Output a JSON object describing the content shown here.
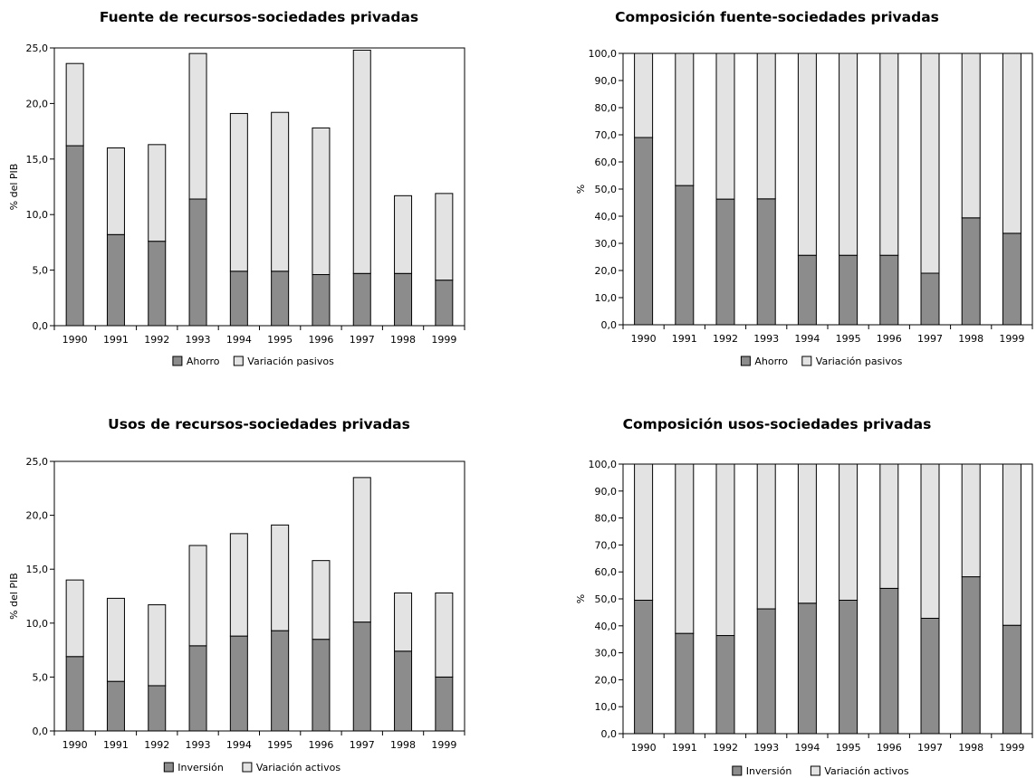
{
  "colors": {
    "dark": "#8c8c8c",
    "light": "#e3e3e3",
    "stroke": "#000000"
  },
  "chart_data": [
    {
      "type": "bar",
      "stacked": true,
      "title": "Fuente de recursos-sociedades privadas",
      "ylabel": "% del PIB",
      "ylim": [
        0,
        25
      ],
      "yticks": [
        "0,0",
        "5,0",
        "10,0",
        "15,0",
        "20,0",
        "25,0"
      ],
      "categories": [
        "1990",
        "1991",
        "1992",
        "1993",
        "1994",
        "1995",
        "1996",
        "1997",
        "1998",
        "1999"
      ],
      "series": [
        {
          "name": "Ahorro",
          "values": [
            16.2,
            8.2,
            7.6,
            11.4,
            4.9,
            4.9,
            4.6,
            4.7,
            4.7,
            4.1
          ]
        },
        {
          "name": "Variación pasivos",
          "values": [
            7.4,
            7.8,
            8.7,
            13.1,
            14.2,
            14.3,
            13.2,
            20.1,
            7.0,
            7.8
          ]
        }
      ],
      "legend": "bottom"
    },
    {
      "type": "bar",
      "stacked": true,
      "title": "Composición fuente-sociedades privadas",
      "ylabel": "%",
      "ylim": [
        0,
        100
      ],
      "yticks": [
        "0,0",
        "10,0",
        "20,0",
        "30,0",
        "40,0",
        "50,0",
        "60,0",
        "70,0",
        "80,0",
        "90,0",
        "100,0"
      ],
      "categories": [
        "1990",
        "1991",
        "1992",
        "1993",
        "1994",
        "1995",
        "1996",
        "1997",
        "1998",
        "1999"
      ],
      "series": [
        {
          "name": "Ahorro",
          "values": [
            69.0,
            51.3,
            46.3,
            46.4,
            25.6,
            25.6,
            25.6,
            19.0,
            39.4,
            33.7
          ]
        },
        {
          "name": "Variación pasivos",
          "values": [
            31.0,
            48.7,
            53.7,
            53.6,
            74.4,
            74.4,
            74.4,
            81.0,
            60.6,
            66.3
          ]
        }
      ],
      "legend": "bottom"
    },
    {
      "type": "bar",
      "stacked": true,
      "title": "Usos de recursos-sociedades privadas",
      "ylabel": "% del PIB",
      "ylim": [
        0,
        25
      ],
      "yticks": [
        "0,0",
        "5,0",
        "10,0",
        "15,0",
        "20,0",
        "25,0"
      ],
      "categories": [
        "1990",
        "1991",
        "1992",
        "1993",
        "1994",
        "1995",
        "1996",
        "1997",
        "1998",
        "1999"
      ],
      "series": [
        {
          "name": "Inversión",
          "values": [
            6.9,
            4.6,
            4.2,
            7.9,
            8.8,
            9.3,
            8.5,
            10.1,
            7.4,
            5.0
          ]
        },
        {
          "name": "Variación activos",
          "values": [
            7.1,
            7.7,
            7.5,
            9.3,
            9.5,
            9.8,
            7.3,
            13.4,
            5.4,
            7.8
          ]
        }
      ],
      "legend": "bottom"
    },
    {
      "type": "bar",
      "stacked": true,
      "title": "Composición usos-sociedades privadas",
      "ylabel": "%",
      "ylim": [
        0,
        100
      ],
      "yticks": [
        "0,0",
        "10,0",
        "20,0",
        "30,0",
        "40,0",
        "50,0",
        "60,0",
        "70,0",
        "80,0",
        "90,0",
        "100,0"
      ],
      "categories": [
        "1990",
        "1991",
        "1992",
        "1993",
        "1994",
        "1995",
        "1996",
        "1997",
        "1998",
        "1999"
      ],
      "series": [
        {
          "name": "Inversión",
          "values": [
            49.5,
            37.2,
            36.4,
            46.3,
            48.4,
            49.5,
            53.9,
            42.8,
            58.2,
            40.2
          ]
        },
        {
          "name": "Variación activos",
          "values": [
            50.5,
            62.8,
            63.6,
            53.7,
            51.6,
            50.5,
            46.1,
            57.2,
            41.8,
            59.8
          ]
        }
      ],
      "legend": "bottom"
    }
  ]
}
